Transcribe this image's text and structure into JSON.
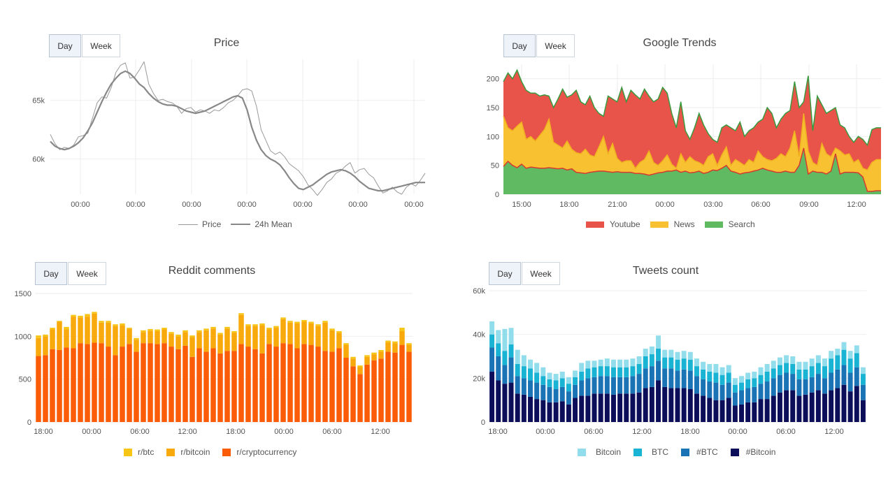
{
  "toggle": {
    "day_label": "Day",
    "week_label": "Week"
  },
  "panels": {
    "price": {
      "title": "Price",
      "legend": [
        {
          "label": "Price"
        },
        {
          "label": "24h Mean"
        }
      ]
    },
    "trends": {
      "title": "Google Trends",
      "legend": [
        {
          "label": "Youtube",
          "color": "#e8544a"
        },
        {
          "label": "News",
          "color": "#f7c132"
        },
        {
          "label": "Search",
          "color": "#4caf50"
        }
      ]
    },
    "reddit": {
      "title": "Reddit comments",
      "legend": [
        {
          "label": "r/btc",
          "color": "#f7c515"
        },
        {
          "label": "r/bitcoin",
          "color": "#f8a90c"
        },
        {
          "label": "r/cryptocurrency",
          "color": "#fb5c07"
        }
      ]
    },
    "tweets": {
      "title": "Tweets count",
      "legend": [
        {
          "label": "Bitcoin",
          "color": "#92ddeb"
        },
        {
          "label": "BTC",
          "color": "#19b3d3"
        },
        {
          "label": "#BTC",
          "color": "#1a73b4"
        },
        {
          "label": "#Bitcoin",
          "color": "#0c0e5a"
        }
      ]
    }
  },
  "chart_data": [
    {
      "type": "line",
      "title": "Price",
      "xtick_labels": [
        "00:00",
        "00:00",
        "00:00",
        "00:00",
        "00:00",
        "00:00",
        "00:00"
      ],
      "ytick_labels": [
        "60k",
        "65k"
      ],
      "ylim": [
        57000,
        68500
      ],
      "series": [
        {
          "name": "Price",
          "color": "#999999",
          "values": [
            62100,
            61300,
            60800,
            61000,
            60900,
            61200,
            61900,
            62000,
            62200,
            63500,
            64800,
            65300,
            65200,
            66100,
            67400,
            68000,
            68200,
            66900,
            67000,
            67600,
            68300,
            66400,
            65600,
            65000,
            65100,
            64900,
            64800,
            64500,
            63900,
            64300,
            64400,
            64000,
            64200,
            64100,
            63900,
            64200,
            64100,
            64400,
            64800,
            65000,
            65400,
            65900,
            66000,
            65800,
            64500,
            62500,
            61600,
            60700,
            60400,
            60600,
            60200,
            59600,
            59300,
            59000,
            58500,
            57800,
            57400,
            56900,
            57400,
            58000,
            58300,
            58800,
            59000,
            59400,
            59700,
            58800,
            59100,
            59200,
            58700,
            58400,
            57700,
            57100,
            57300,
            57600,
            57200,
            57000,
            57600,
            57900,
            57700,
            58200,
            58800
          ]
        },
        {
          "name": "24h Mean",
          "color": "#888888",
          "values": [
            61500,
            61100,
            60900,
            60800,
            60900,
            61100,
            61400,
            61800,
            62400,
            63100,
            64000,
            64900,
            65700,
            66400,
            66900,
            67300,
            67500,
            67300,
            66900,
            66400,
            66100,
            65600,
            65200,
            64900,
            64700,
            64600,
            64600,
            64500,
            64300,
            64100,
            64000,
            63900,
            64000,
            64100,
            64300,
            64500,
            64700,
            64900,
            65100,
            65300,
            65400,
            65200,
            64200,
            62700,
            61600,
            60800,
            60300,
            60000,
            59800,
            59500,
            59000,
            58400,
            57900,
            57500,
            57400,
            57600,
            57800,
            58100,
            58400,
            58700,
            58900,
            59000,
            59100,
            59000,
            58800,
            58500,
            58100,
            57800,
            57500,
            57400,
            57300,
            57300,
            57400,
            57500,
            57600,
            57700,
            57800,
            57900,
            58000,
            58000,
            58000
          ]
        }
      ]
    },
    {
      "type": "area",
      "title": "Google Trends",
      "xtick_labels": [
        "15:00",
        "18:00",
        "21:00",
        "00:00",
        "03:00",
        "06:00",
        "09:00",
        "12:00"
      ],
      "ytick_labels": [
        "0",
        "50",
        "100",
        "150",
        "200"
      ],
      "ylim": [
        0,
        225
      ],
      "series": [
        {
          "name": "Search",
          "color": "#5fba62",
          "values": [
            48,
            57,
            50,
            46,
            52,
            45,
            47,
            46,
            45,
            45,
            46,
            45,
            44,
            45,
            42,
            44,
            38,
            37,
            36,
            38,
            39,
            40,
            40,
            39,
            38,
            39,
            38,
            38,
            38,
            36,
            36,
            35,
            33,
            35,
            37,
            38,
            40,
            40,
            42,
            38,
            40,
            37,
            38,
            40,
            36,
            38,
            42,
            41,
            45,
            50,
            40,
            38,
            35,
            37,
            38,
            40,
            42,
            45,
            42,
            40,
            38,
            38,
            40,
            38,
            38,
            50,
            80,
            35,
            40,
            38,
            38,
            35,
            40,
            70,
            35,
            38,
            38,
            38,
            37,
            30,
            5,
            5,
            6,
            6
          ]
        },
        {
          "name": "News",
          "color": "#f7c132",
          "values": [
            135,
            115,
            110,
            118,
            125,
            95,
            100,
            92,
            102,
            112,
            130,
            90,
            85,
            80,
            92,
            78,
            72,
            70,
            78,
            68,
            65,
            82,
            100,
            70,
            88,
            62,
            55,
            58,
            58,
            45,
            55,
            60,
            75,
            55,
            50,
            58,
            68,
            52,
            45,
            70,
            55,
            65,
            58,
            55,
            50,
            65,
            70,
            50,
            68,
            82,
            50,
            60,
            55,
            50,
            60,
            55,
            75,
            65,
            60,
            58,
            62,
            70,
            65,
            80,
            110,
            65,
            140,
            75,
            55,
            50,
            88,
            70,
            65,
            80,
            75,
            68,
            70,
            55,
            60,
            45,
            42,
            55,
            60,
            60
          ]
        },
        {
          "name": "Youtube",
          "color": "#e8544a",
          "values": [
            195,
            210,
            200,
            215,
            195,
            180,
            175,
            175,
            170,
            172,
            170,
            150,
            165,
            182,
            168,
            172,
            180,
            160,
            155,
            170,
            150,
            140,
            135,
            170,
            165,
            160,
            185,
            160,
            180,
            172,
            165,
            182,
            170,
            160,
            165,
            185,
            175,
            140,
            115,
            160,
            110,
            95,
            115,
            140,
            120,
            105,
            95,
            90,
            115,
            120,
            115,
            110,
            125,
            100,
            110,
            115,
            125,
            130,
            150,
            140,
            115,
            130,
            140,
            145,
            195,
            150,
            160,
            205,
            110,
            170,
            155,
            140,
            145,
            150,
            120,
            115,
            100,
            90,
            100,
            95,
            85,
            112,
            115,
            115
          ]
        }
      ]
    },
    {
      "type": "bar",
      "stacked": true,
      "title": "Reddit comments",
      "xtick_labels": [
        "18:00",
        "00:00",
        "06:00",
        "12:00",
        "18:00",
        "00:00",
        "06:00",
        "12:00"
      ],
      "ytick_labels": [
        "0",
        "500",
        "1000",
        "1500"
      ],
      "ylim": [
        0,
        1500
      ],
      "series": [
        {
          "name": "r/cryptocurrency",
          "color": "#fb5c07",
          "values": [
            770,
            780,
            850,
            840,
            870,
            860,
            920,
            910,
            925,
            920,
            880,
            780,
            880,
            910,
            820,
            920,
            920,
            910,
            920,
            880,
            850,
            890,
            760,
            860,
            820,
            860,
            800,
            830,
            830,
            910,
            880,
            850,
            800,
            910,
            880,
            920,
            910,
            860,
            910,
            900,
            880,
            830,
            820,
            860,
            750,
            650,
            560,
            670,
            720,
            740,
            820,
            810,
            900,
            820
          ]
        },
        {
          "name": "r/bitcoin",
          "color": "#f8a90c",
          "values": [
            210,
            220,
            230,
            330,
            210,
            370,
            300,
            320,
            340,
            240,
            280,
            340,
            250,
            180,
            140,
            130,
            145,
            150,
            160,
            150,
            150,
            160,
            230,
            190,
            250,
            230,
            220,
            260,
            210,
            340,
            240,
            270,
            330,
            170,
            220,
            280,
            250,
            290,
            260,
            250,
            240,
            330,
            250,
            180,
            150,
            90,
            80,
            90,
            70,
            80,
            110,
            110,
            160,
            80
          ]
        },
        {
          "name": "r/btc",
          "color": "#f7c515",
          "values": [
            30,
            20,
            20,
            10,
            30,
            20,
            20,
            30,
            20,
            20,
            20,
            20,
            20,
            10,
            20,
            20,
            20,
            20,
            20,
            20,
            20,
            20,
            20,
            20,
            20,
            20,
            20,
            20,
            20,
            20,
            20,
            20,
            20,
            20,
            20,
            20,
            20,
            20,
            20,
            20,
            20,
            20,
            20,
            20,
            20,
            20,
            20,
            20,
            20,
            20,
            20,
            20,
            40,
            20
          ]
        }
      ]
    },
    {
      "type": "bar",
      "stacked": true,
      "title": "Tweets count",
      "xtick_labels": [
        "18:00",
        "00:00",
        "06:00",
        "12:00",
        "18:00",
        "00:00",
        "06:00",
        "12:00"
      ],
      "ytick_labels": [
        "0",
        "20k",
        "40k",
        "60k"
      ],
      "ylim": [
        0,
        60000
      ],
      "series": [
        {
          "name": "#Bitcoin",
          "color": "#0c0e5a",
          "values": [
            23000,
            19000,
            17500,
            18000,
            13000,
            12500,
            11500,
            10500,
            10000,
            9000,
            9000,
            9500,
            8000,
            11000,
            12000,
            12000,
            13000,
            13000,
            13000,
            12500,
            13000,
            13000,
            13000,
            13500,
            15500,
            16000,
            19000,
            16000,
            15500,
            15500,
            15500,
            15000,
            13000,
            12000,
            11000,
            10000,
            10000,
            11000,
            7500,
            8000,
            9000,
            9000,
            10500,
            10500,
            12000,
            13500,
            14500,
            14500,
            12000,
            12500,
            13500,
            14500,
            13000,
            14500,
            15500,
            17000,
            14000,
            16500,
            10000
          ]
        },
        {
          "name": "#BTC",
          "color": "#1a73b4",
          "values": [
            11000,
            11000,
            8500,
            11500,
            8000,
            7500,
            7500,
            7500,
            7000,
            7000,
            6000,
            6500,
            6000,
            6000,
            7000,
            8000,
            7500,
            8000,
            8000,
            8000,
            7500,
            7500,
            8000,
            8500,
            9000,
            9500,
            9000,
            8500,
            9000,
            8000,
            8500,
            8500,
            8000,
            7500,
            7500,
            8000,
            7000,
            7000,
            6000,
            6500,
            6500,
            7000,
            7000,
            8000,
            8000,
            8000,
            8000,
            7500,
            7500,
            7000,
            7000,
            7500,
            7000,
            8000,
            8500,
            9000,
            8500,
            8500,
            7000
          ]
        },
        {
          "name": "BTC",
          "color": "#19b3d3",
          "values": [
            6000,
            6000,
            6500,
            6000,
            5500,
            5500,
            5500,
            4500,
            4000,
            3500,
            4000,
            4000,
            3500,
            3500,
            4000,
            4500,
            4500,
            4500,
            4500,
            4500,
            4500,
            4500,
            4500,
            4500,
            5500,
            5500,
            5500,
            5000,
            5000,
            5000,
            5000,
            5000,
            4500,
            4500,
            4500,
            4500,
            4500,
            4500,
            3500,
            3500,
            4000,
            4000,
            4000,
            4500,
            4500,
            4500,
            4500,
            4500,
            4500,
            4500,
            5000,
            5000,
            5500,
            6500,
            6500,
            7000,
            6500,
            6500,
            5000
          ]
        },
        {
          "name": "Bitcoin",
          "color": "#92ddeb",
          "values": [
            6000,
            6000,
            10000,
            7500,
            6500,
            5000,
            4000,
            4500,
            4000,
            3000,
            3000,
            3000,
            3000,
            3000,
            4000,
            3500,
            3000,
            3000,
            3500,
            3500,
            3500,
            3500,
            3500,
            3500,
            3500,
            3500,
            6000,
            3500,
            3500,
            3500,
            3500,
            3500,
            3500,
            3500,
            3500,
            4000,
            3500,
            3500,
            3000,
            3000,
            3000,
            3000,
            3500,
            3500,
            3500,
            3500,
            3500,
            3500,
            3500,
            3500,
            3500,
            3500,
            3500,
            3500,
            3000,
            3500,
            3500,
            3500,
            3000
          ]
        }
      ]
    }
  ]
}
